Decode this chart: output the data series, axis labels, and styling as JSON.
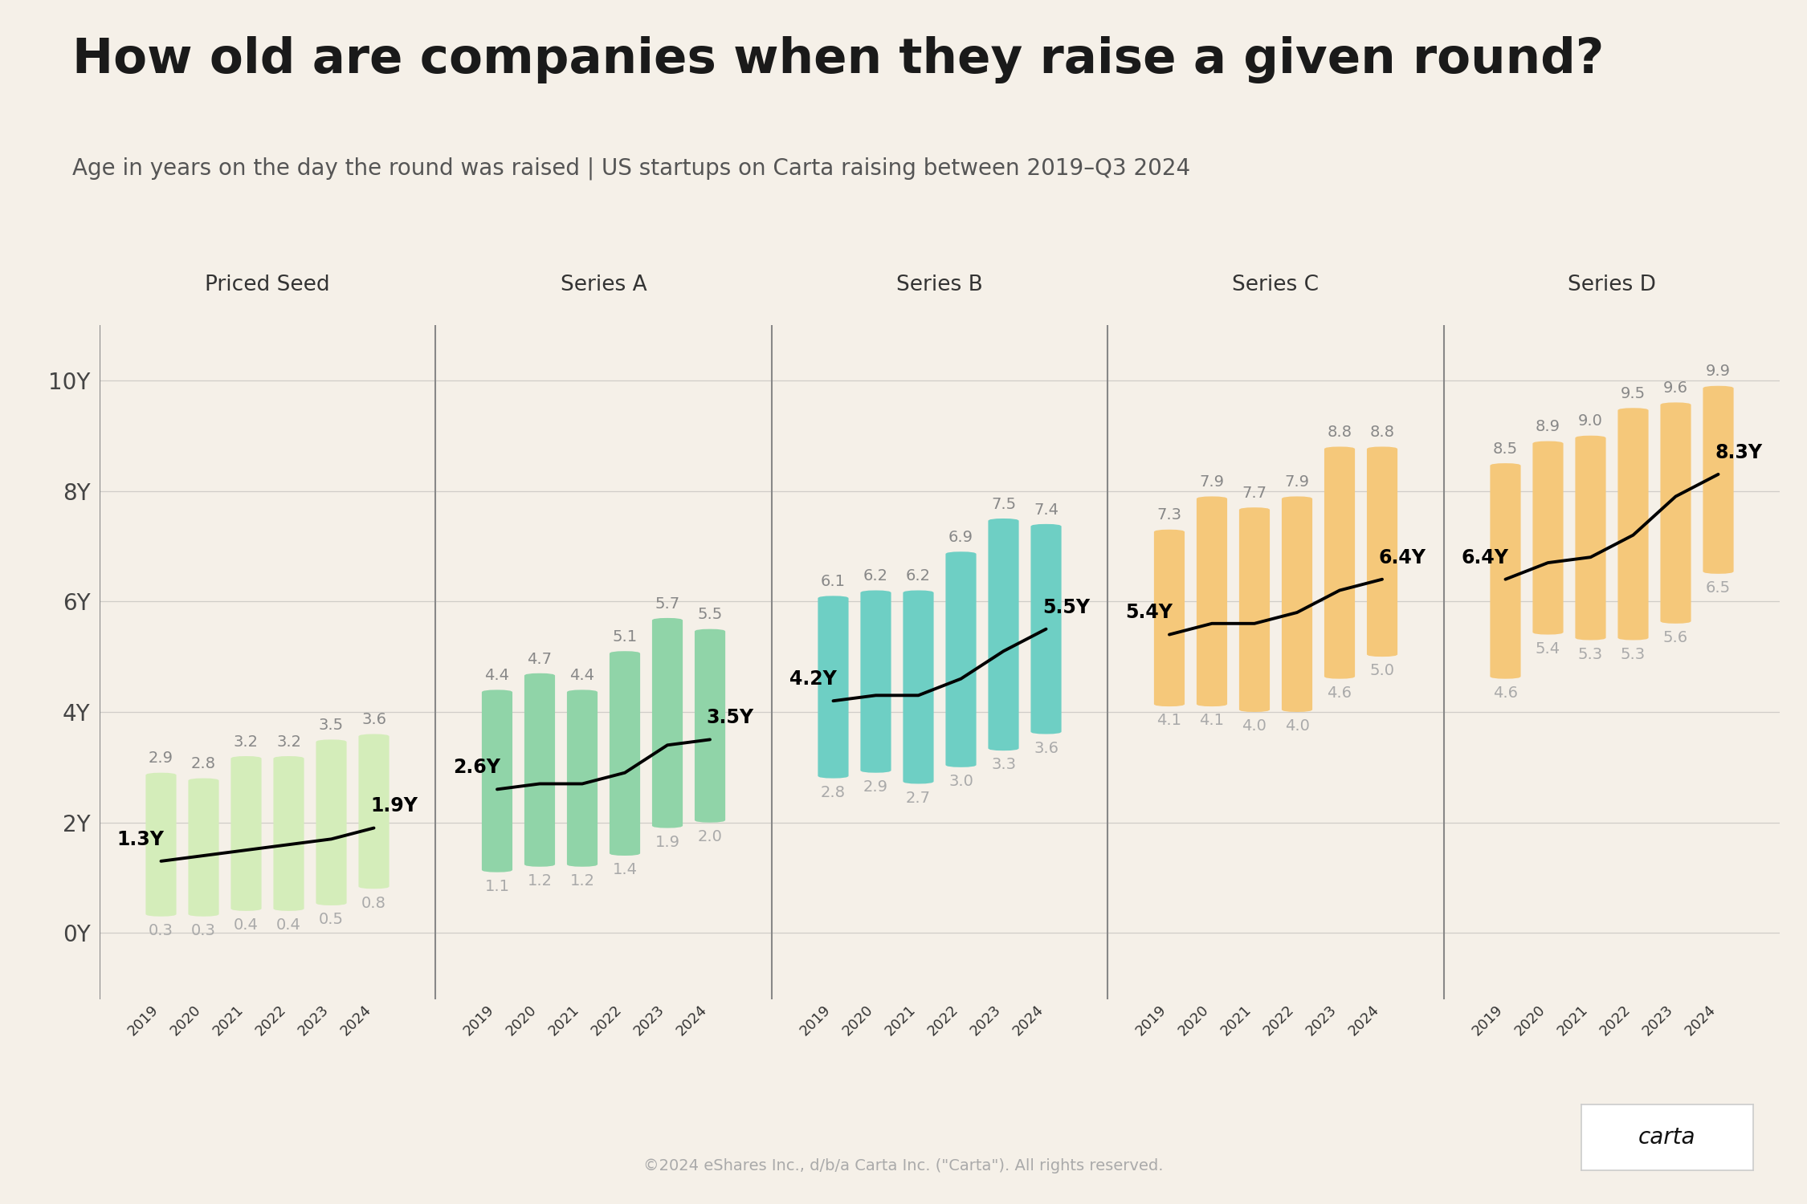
{
  "title": "How old are companies when they raise a given round?",
  "subtitle": "Age in years on the day the round was raised | US startups on Carta raising between 2019–Q3 2024",
  "footer": "©2024 eShares Inc., d/b/a Carta Inc. (\"Carta\"). All rights reserved.",
  "background_color": "#f5f0e8",
  "sections": [
    {
      "name": "Priced Seed",
      "bar_color": "#d4edba",
      "years": [
        "2019",
        "2020",
        "2021",
        "2022",
        "2023",
        "2024"
      ],
      "top_values": [
        2.9,
        2.8,
        3.2,
        3.2,
        3.5,
        3.6
      ],
      "bottom_values": [
        0.3,
        0.3,
        0.4,
        0.4,
        0.5,
        0.8
      ],
      "median_values": [
        1.3,
        1.4,
        1.5,
        1.6,
        1.7,
        1.9
      ],
      "median_label_first": "1.3Y",
      "median_label_last": "1.9Y"
    },
    {
      "name": "Series A",
      "bar_color": "#90d4a8",
      "years": [
        "2019",
        "2020",
        "2021",
        "2022",
        "2023",
        "2024"
      ],
      "top_values": [
        4.4,
        4.7,
        4.4,
        5.1,
        5.7,
        5.5
      ],
      "bottom_values": [
        1.1,
        1.2,
        1.2,
        1.4,
        1.9,
        2.0
      ],
      "median_values": [
        2.6,
        2.7,
        2.7,
        2.9,
        3.4,
        3.5
      ],
      "median_label_first": "2.6Y",
      "median_label_last": "3.5Y"
    },
    {
      "name": "Series B",
      "bar_color": "#6ecfc4",
      "years": [
        "2019",
        "2020",
        "2021",
        "2022",
        "2023",
        "2024"
      ],
      "top_values": [
        6.1,
        6.2,
        6.2,
        6.9,
        7.5,
        7.4
      ],
      "bottom_values": [
        2.8,
        2.9,
        2.7,
        3.0,
        3.3,
        3.6
      ],
      "median_values": [
        4.2,
        4.3,
        4.3,
        4.6,
        5.1,
        5.5
      ],
      "median_label_first": "4.2Y",
      "median_label_last": "5.5Y"
    },
    {
      "name": "Series C",
      "bar_color": "#f5c87a",
      "years": [
        "2019",
        "2020",
        "2021",
        "2022",
        "2023",
        "2024"
      ],
      "top_values": [
        7.3,
        7.9,
        7.7,
        7.9,
        8.8,
        8.8
      ],
      "bottom_values": [
        4.1,
        4.1,
        4.0,
        4.0,
        4.6,
        5.0
      ],
      "median_values": [
        5.4,
        5.6,
        5.6,
        5.8,
        6.2,
        6.4
      ],
      "median_label_first": "5.4Y",
      "median_label_last": "6.4Y"
    },
    {
      "name": "Series D",
      "bar_color": "#f5c87a",
      "years": [
        "2019",
        "2020",
        "2021",
        "2022",
        "2023",
        "2024"
      ],
      "top_values": [
        8.5,
        8.9,
        9.0,
        9.5,
        9.6,
        9.9
      ],
      "bottom_values": [
        4.6,
        5.4,
        5.3,
        5.3,
        5.6,
        6.5
      ],
      "median_values": [
        6.4,
        6.7,
        6.8,
        7.2,
        7.9,
        8.3
      ],
      "median_label_first": "6.4Y",
      "median_label_last": "8.3Y"
    }
  ],
  "yticks": [
    0,
    2,
    4,
    6,
    8,
    10
  ],
  "ytick_labels": [
    "0Y",
    "2Y",
    "4Y",
    "6Y",
    "8Y",
    "10Y"
  ],
  "ymax": 11.0,
  "ymin": -1.2
}
